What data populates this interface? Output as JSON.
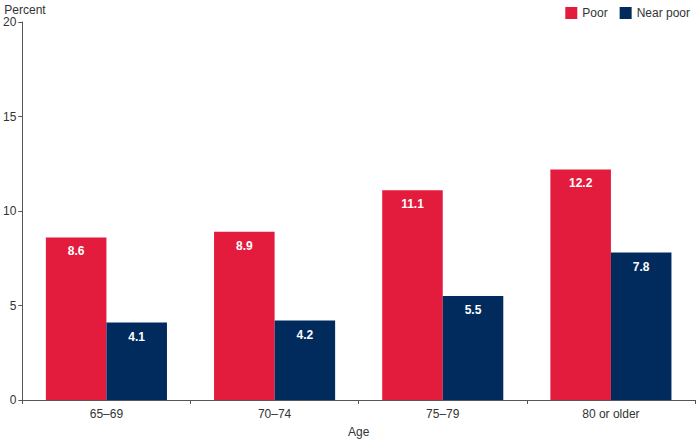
{
  "chart_data": {
    "type": "bar",
    "y_label": "Percent",
    "x_label": "Age",
    "categories": [
      "65–69",
      "70–74",
      "75–79",
      "80 or older"
    ],
    "series": [
      {
        "name": "Poor",
        "color": "#e31b3c",
        "values": [
          8.6,
          8.9,
          11.1,
          12.2
        ]
      },
      {
        "name": "Near poor",
        "color": "#002b5c",
        "values": [
          4.1,
          4.2,
          5.5,
          7.8
        ]
      }
    ],
    "ylim": [
      0,
      20
    ],
    "yticks": [
      0,
      5,
      10,
      15,
      20
    ],
    "grid": false,
    "legend": "upper right",
    "data_labels": true
  }
}
